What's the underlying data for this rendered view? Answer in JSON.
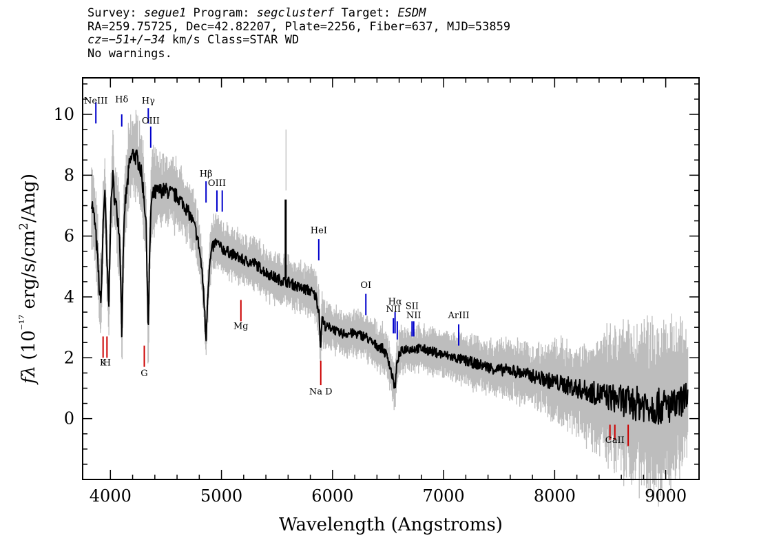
{
  "header": {
    "line1_prefix": "Survey: ",
    "survey": "segue1",
    "program_prefix": " Program: ",
    "program": "segclusterf",
    "target_prefix": " Target: ",
    "target": "ESDM",
    "line2": "RA=259.75725, Dec=42.82207, Plate=2256, Fiber=637, MJD=53859",
    "cz_label": "cz",
    "cz_value": "=−51+/−34",
    "cz_rest": " km/s Class=STAR WD",
    "line4": "No warnings."
  },
  "colors": {
    "spectrum": "#000000",
    "error_band": "#bdbdbd",
    "emission_line": "#0000cc",
    "absorption_line": "#cc0000"
  },
  "chart_data": {
    "type": "line",
    "xlabel": "Wavelength (Angstroms)",
    "ylabel": "fλ (10⁻¹⁷ erg/s/cm²/Ang)",
    "xlim": [
      3750,
      9300
    ],
    "ylim": [
      -2,
      11.2
    ],
    "xticks": [
      4000,
      5000,
      6000,
      7000,
      8000,
      9000
    ],
    "yticks": [
      0,
      2,
      4,
      6,
      8,
      10
    ],
    "series": [
      {
        "x": [
          3830,
          3860,
          3880,
          3895,
          3905,
          3920,
          3935,
          3950,
          3965,
          3985,
          4000,
          4020,
          4040,
          4060,
          4080,
          4095,
          4102,
          4112,
          4130,
          4150,
          4170,
          4200,
          4230,
          4260,
          4280,
          4300,
          4320,
          4330,
          4341,
          4352,
          4365,
          4380,
          4400,
          4450,
          4500,
          4550,
          4600,
          4650,
          4700,
          4750,
          4780,
          4800,
          4820,
          4840,
          4861,
          4875,
          4890,
          4910,
          4930,
          4950,
          5000,
          5050,
          5100,
          5200,
          5300,
          5400,
          5500,
          5580,
          5600,
          5700,
          5800,
          5850,
          5880,
          5893,
          5905,
          5920,
          5950,
          6000,
          6050,
          6100,
          6200,
          6300,
          6350,
          6400,
          6450,
          6500,
          6530,
          6550,
          6563,
          6575,
          6590,
          6620,
          6650,
          6700,
          6800,
          6900,
          7000,
          7100,
          7200,
          7300,
          7400,
          7500,
          7600,
          7700,
          7800,
          7900,
          8000,
          8100,
          8200,
          8300,
          8400,
          8500,
          8600,
          8700,
          8800,
          8900,
          9000,
          9100,
          9150,
          9200
        ],
        "y": [
          7.2,
          6.4,
          5.5,
          4.6,
          3.9,
          4.2,
          6.5,
          7.6,
          5.5,
          3.6,
          6.5,
          8.0,
          7.2,
          6.8,
          6.2,
          4.5,
          2.7,
          4.8,
          7.0,
          7.6,
          8.3,
          8.7,
          8.6,
          8.4,
          8.0,
          7.4,
          6.5,
          5.0,
          2.7,
          5.2,
          6.9,
          7.3,
          7.4,
          7.5,
          7.5,
          7.4,
          7.3,
          7.1,
          6.8,
          6.4,
          6.0,
          5.6,
          5.0,
          4.1,
          2.6,
          4.0,
          4.9,
          5.5,
          5.7,
          5.8,
          5.6,
          5.5,
          5.4,
          5.2,
          5.1,
          4.8,
          4.6,
          4.5,
          4.5,
          4.3,
          4.2,
          4.0,
          3.5,
          2.2,
          3.4,
          3.1,
          3.0,
          3.0,
          2.8,
          2.8,
          2.8,
          2.7,
          2.5,
          2.4,
          2.3,
          2.0,
          1.5,
          1.2,
          1.0,
          1.6,
          2.0,
          2.2,
          2.3,
          2.3,
          2.3,
          2.2,
          2.1,
          2.0,
          1.9,
          1.8,
          1.7,
          1.6,
          1.6,
          1.5,
          1.4,
          1.3,
          1.2,
          1.1,
          1.0,
          0.9,
          0.8,
          0.7,
          0.6,
          0.5,
          0.5,
          0.4,
          0.4,
          0.4,
          0.6,
          0.9
        ],
        "noise_amplitude": [
          0.3,
          0.3,
          0.3,
          0.3,
          0.3,
          0.3,
          0.3,
          0.3,
          0.3,
          0.3,
          0.3,
          0.3,
          0.3,
          0.3,
          0.3,
          0.3,
          0.3,
          0.3,
          0.3,
          0.3,
          0.3,
          0.3,
          0.3,
          0.3,
          0.3,
          0.3,
          0.3,
          0.3,
          0.3,
          0.3,
          0.3,
          0.3,
          0.3,
          0.25,
          0.25,
          0.25,
          0.25,
          0.22,
          0.22,
          0.22,
          0.22,
          0.2,
          0.2,
          0.2,
          0.2,
          0.2,
          0.2,
          0.2,
          0.2,
          0.2,
          0.18,
          0.18,
          0.18,
          0.18,
          0.18,
          0.18,
          0.18,
          0.18,
          0.18,
          0.18,
          0.18,
          0.18,
          0.18,
          0.18,
          0.18,
          0.18,
          0.16,
          0.16,
          0.16,
          0.16,
          0.16,
          0.16,
          0.16,
          0.16,
          0.16,
          0.16,
          0.16,
          0.16,
          0.16,
          0.16,
          0.16,
          0.16,
          0.16,
          0.16,
          0.16,
          0.16,
          0.16,
          0.16,
          0.18,
          0.18,
          0.18,
          0.2,
          0.2,
          0.22,
          0.22,
          0.25,
          0.28,
          0.3,
          0.32,
          0.35,
          0.4,
          0.45,
          0.5,
          0.55,
          0.6,
          0.6,
          0.6,
          0.55,
          0.5,
          0.45
        ],
        "spike": {
          "x": 5578,
          "ymin": 4.6,
          "ymax": 7.2
        }
      }
    ],
    "emission_lines": [
      {
        "label": "NeIII",
        "x": 3869,
        "bar_top": 10.4,
        "bar_bottom": 9.7,
        "label_y": 10.35
      },
      {
        "label": "Hδ",
        "x": 4102,
        "bar_top": 10.0,
        "bar_bottom": 9.6,
        "label_y": 10.4
      },
      {
        "label": "Hγ",
        "x": 4341,
        "bar_top": 10.2,
        "bar_bottom": 9.7,
        "label_y": 10.35
      },
      {
        "label": "OIII",
        "x": 4363,
        "bar_top": 9.6,
        "bar_bottom": 8.9,
        "label_y": 9.7
      },
      {
        "label": "Hβ",
        "x": 4861,
        "bar_top": 7.8,
        "bar_bottom": 7.1,
        "label_y": 7.95
      },
      {
        "label": "OIII",
        "x": 4959,
        "bar_top": 7.5,
        "bar_bottom": 6.8,
        "label_y": 7.65
      },
      {
        "label": "",
        "x": 5007,
        "bar_top": 7.5,
        "bar_bottom": 6.8,
        "label_y": 0
      },
      {
        "label": "HeI",
        "x": 5876,
        "bar_top": 5.9,
        "bar_bottom": 5.2,
        "label_y": 6.1
      },
      {
        "label": "OI",
        "x": 6300,
        "bar_top": 4.1,
        "bar_bottom": 3.4,
        "label_y": 4.3
      },
      {
        "label": "NII",
        "x": 6548,
        "bar_top": 3.3,
        "bar_bottom": 2.8,
        "label_y": 3.5
      },
      {
        "label": "Hα",
        "x": 6563,
        "bar_top": 3.5,
        "bar_bottom": 2.8,
        "label_y": 3.75
      },
      {
        "label": "",
        "x": 6583,
        "bar_top": 3.2,
        "bar_bottom": 2.6,
        "label_y": 0
      },
      {
        "label": "SII",
        "x": 6716,
        "bar_top": 3.2,
        "bar_bottom": 2.7,
        "label_y": 3.6
      },
      {
        "label": "NII",
        "x": 6731,
        "bar_top": 3.2,
        "bar_bottom": 2.7,
        "label_y": 3.3
      },
      {
        "label": "ArIII",
        "x": 7136,
        "bar_top": 3.1,
        "bar_bottom": 2.4,
        "label_y": 3.3
      }
    ],
    "absorption_lines": [
      {
        "label": "K",
        "x": 3934,
        "bar_top": 2.7,
        "bar_bottom": 2.0,
        "label_y": 1.75
      },
      {
        "label": "H",
        "x": 3969,
        "bar_top": 2.7,
        "bar_bottom": 2.0,
        "label_y": 1.75
      },
      {
        "label": "G",
        "x": 4305,
        "bar_top": 2.4,
        "bar_bottom": 1.7,
        "label_y": 1.4
      },
      {
        "label": "Mg",
        "x": 5175,
        "bar_top": 3.9,
        "bar_bottom": 3.2,
        "label_y": 2.95
      },
      {
        "label": "Na D",
        "x": 5894,
        "bar_top": 1.9,
        "bar_bottom": 1.1,
        "label_y": 0.8
      },
      {
        "label": "",
        "x": 8498,
        "bar_top": -0.2,
        "bar_bottom": -0.7,
        "label_y": 0
      },
      {
        "label": "CaII",
        "x": 8542,
        "bar_top": -0.2,
        "bar_bottom": -0.7,
        "label_y": -0.8
      },
      {
        "label": "",
        "x": 8662,
        "bar_top": -0.2,
        "bar_bottom": -0.9,
        "label_y": 0
      }
    ]
  }
}
